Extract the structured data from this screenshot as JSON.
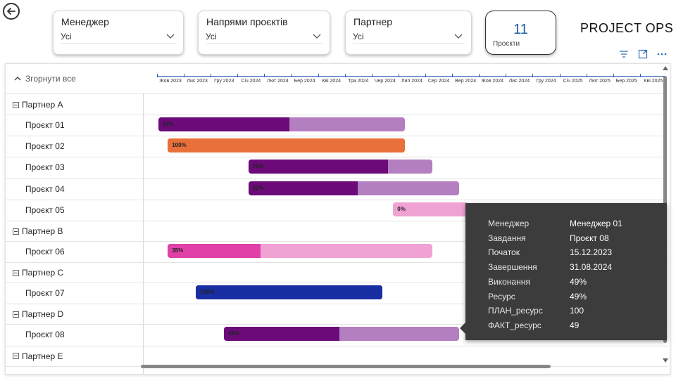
{
  "filters": {
    "manager": {
      "title": "Менеджер",
      "value": "Усі"
    },
    "directions": {
      "title": "Напрями проєктів",
      "value": "Усі"
    },
    "partner": {
      "title": "Партнер",
      "value": "Усі"
    }
  },
  "kpi": {
    "value": "11",
    "label": "Проєкти"
  },
  "brand": "PROJECT OPS",
  "icons": {
    "back": "arrow-left-icon",
    "filter": "filter-icon",
    "focus": "focus-mode-icon",
    "more": "more-options-icon"
  },
  "gantt": {
    "collapse_all": "Згорнути все",
    "months": [
      "Жов 2023",
      "Лис 2023",
      "Гру 2023",
      "Січ 2024",
      "Лют 2024",
      "Бер 2024",
      "Кві 2024",
      "Тра 2024",
      "Чер 2024",
      "Лип 2024",
      "Сер 2024",
      "Вер 2024",
      "Жов 2024",
      "Лис 2024",
      "Гру 2024",
      "Січ 2025",
      "Лют 2025",
      "Бер 2025",
      "Кві 2025"
    ],
    "groups": [
      {
        "label": "Партнер A",
        "rows": [
          {
            "label": "Проєкт 01",
            "pct": "53%",
            "start_month": 0.05,
            "end_month": 9.25,
            "progress": 0.53,
            "done_color": "#6b0a78",
            "rest_color": "#b47fc0"
          },
          {
            "label": "Проєкт 02",
            "pct": "100%",
            "start_month": 0.4,
            "end_month": 9.25,
            "progress": 1.0,
            "done_color": "#e8703a",
            "rest_color": "#e8703a"
          },
          {
            "label": "Проєкт 03",
            "pct": "76%",
            "start_month": 3.4,
            "end_month": 10.25,
            "progress": 0.76,
            "done_color": "#6b0a78",
            "rest_color": "#b47fc0"
          },
          {
            "label": "Проєкт 04",
            "pct": "52%",
            "start_month": 3.4,
            "end_month": 11.25,
            "progress": 0.52,
            "done_color": "#6b0a78",
            "rest_color": "#b47fc0"
          },
          {
            "label": "Проєкт 05",
            "pct": "0%",
            "start_month": 8.8,
            "end_month": 11.6,
            "progress": 0.0,
            "done_color": "#d64aa8",
            "rest_color": "#f0a2d4"
          }
        ]
      },
      {
        "label": "Партнер B",
        "rows": [
          {
            "label": "Проєкт 06",
            "pct": "35%",
            "start_month": 0.4,
            "end_month": 10.25,
            "progress": 0.35,
            "done_color": "#e040a8",
            "rest_color": "#f0a2d4"
          }
        ]
      },
      {
        "label": "Партнер C",
        "rows": [
          {
            "label": "Проєкт 07",
            "pct": "100%",
            "start_month": 1.45,
            "end_month": 8.4,
            "progress": 1.0,
            "done_color": "#1a2ea3",
            "rest_color": "#1a2ea3"
          }
        ]
      },
      {
        "label": "Партнер D",
        "rows": [
          {
            "label": "Проєкт 08",
            "pct": "49%",
            "start_month": 2.5,
            "end_month": 11.25,
            "progress": 0.49,
            "done_color": "#6b0a78",
            "rest_color": "#b47fc0"
          }
        ]
      },
      {
        "label": "Партнер E",
        "rows": []
      }
    ]
  },
  "tooltip": {
    "rows": [
      {
        "key": "Менеджер",
        "value": "Менеджер 01"
      },
      {
        "key": "Завдання",
        "value": "Проєкт 08"
      },
      {
        "key": "Початок",
        "value": "15.12.2023"
      },
      {
        "key": "Завершення",
        "value": "31.08.2024"
      },
      {
        "key": "Виконання",
        "value": "49%"
      },
      {
        "key": "Ресурс",
        "value": "49%"
      },
      {
        "key": "ПЛАН_ресурс",
        "value": "100"
      },
      {
        "key": "ФАКТ_ресурс",
        "value": "49"
      }
    ]
  }
}
